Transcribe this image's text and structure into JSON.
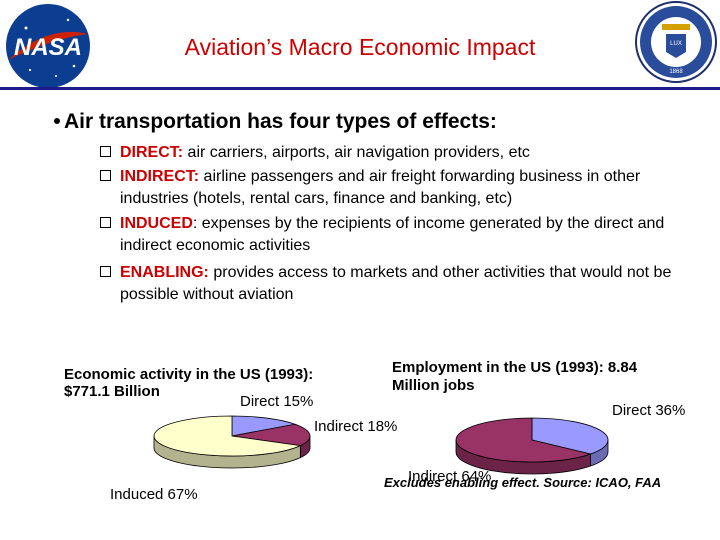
{
  "header": {
    "title": "Aviation’s Macro Economic Impact",
    "left_logo_text": "NASA",
    "right_seal_text": "UNIVERSITY OF CALIFORNIA · 1868"
  },
  "main_bullet": "Air transportation has four types of effects:",
  "effects": [
    {
      "keyword": "DIRECT:",
      "text": " air carriers, airports, air navigation providers, etc"
    },
    {
      "keyword": "INDIRECT:",
      "text": " airline passengers and air freight forwarding business in other industries (hotels, rental cars, finance and banking, etc)"
    },
    {
      "keyword": "INDUCED",
      "text": ": expenses by the recipients of income generated by the direct and indirect economic activities"
    },
    {
      "keyword": "ENABLING:",
      "text": " provides access to markets and other activities that would not be possible without aviation"
    }
  ],
  "chart_data": [
    {
      "type": "pie",
      "title": "Economic activity in the US (1993): $771.1 Billion",
      "title_line1": "Economic activity in the US (1993):",
      "title_line2": "$771.1 Billion",
      "categories": [
        "Direct",
        "Indirect",
        "Induced"
      ],
      "values": [
        15,
        18,
        67
      ],
      "labels": [
        "Direct 15%",
        "Indirect 18%",
        "Induced 67%"
      ],
      "colors": [
        "#9999ff",
        "#993366",
        "#ffffcc"
      ]
    },
    {
      "type": "pie",
      "title": "Employment in the US (1993): 8.84 Million jobs",
      "title_line1": "Employment in the US (1993): 8.84",
      "title_line2": "Million jobs",
      "categories": [
        "Direct",
        "Indirect"
      ],
      "values": [
        36,
        64
      ],
      "labels": [
        "Direct 36%",
        "Indirect 64%"
      ],
      "colors": [
        "#9999ff",
        "#993366"
      ]
    }
  ],
  "footnote": "Excludes enabling effect. Source: ICAO, FAA"
}
